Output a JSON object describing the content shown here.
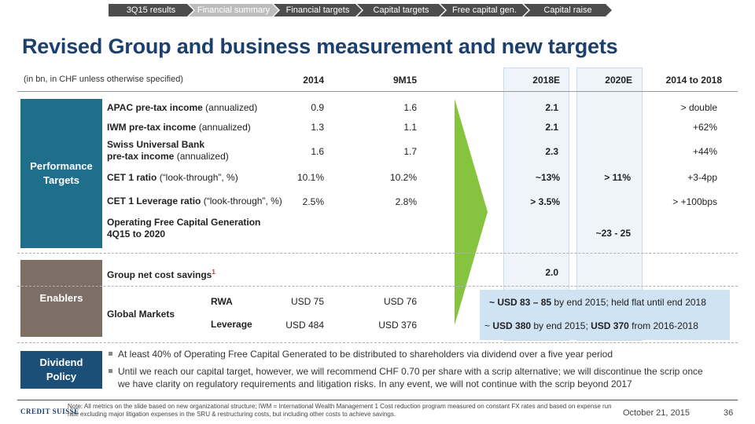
{
  "breadcrumb": {
    "items": [
      "3Q15 results",
      "Financial summary",
      "Financial targets",
      "Capital targets",
      "Free capital gen.",
      "Capital raise"
    ]
  },
  "title": "Revised Group and business measurement and new targets",
  "header": {
    "unit_note": "(in bn, in CHF unless otherwise specified)",
    "cols": [
      "2014",
      "9M15",
      "2018E",
      "2020E",
      "2014 to 2018"
    ]
  },
  "sections": {
    "performance": "Performance Targets",
    "enablers": "Enablers",
    "dividend": "Dividend Policy"
  },
  "rows": {
    "apac": {
      "label_bold": "APAC pre-tax income",
      "label_rest": " (annualized)",
      "v2014": "0.9",
      "v9m15": "1.6",
      "v2018": "2.1",
      "v2020": "",
      "chg": "> double"
    },
    "iwm": {
      "label_bold": "IWM pre-tax income",
      "label_rest": " (annualized)",
      "v2014": "1.3",
      "v9m15": "1.1",
      "v2018": "2.1",
      "v2020": "",
      "chg": "+62%"
    },
    "sub": {
      "label_bold1": "Swiss Universal Bank",
      "label_bold2": "pre-tax income",
      "label_rest": " (annualized)",
      "v2014": "1.6",
      "v9m15": "1.7",
      "v2018": "2.3",
      "v2020": "",
      "chg": "+44%"
    },
    "cet1": {
      "label_bold": "CET 1 ratio",
      "label_rest": " (“look-through”, %)",
      "v2014": "10.1%",
      "v9m15": "10.2%",
      "v2018": "~13%",
      "v2020": "> 11%",
      "chg": "+3-4pp"
    },
    "lev": {
      "label_bold": "CET 1 Leverage ratio",
      "label_rest": " (“look-through”, %)",
      "v2014": "2.5%",
      "v9m15": "2.8%",
      "v2018": "> 3.5%",
      "v2020": "",
      "chg": "> +100bps"
    },
    "ofcg": {
      "label1": "Operating Free Capital Generation",
      "label2": "4Q15 to 2020",
      "v2020": "~23 - 25"
    },
    "savings": {
      "label": "Group net cost savings",
      "sup": "1",
      "v2018": "2.0"
    }
  },
  "global_markets": {
    "label": "Global Markets",
    "rwa": {
      "label": "RWA",
      "v2014": "USD 75",
      "v9m15": "USD 76",
      "target_bold": "~ USD 83 – 85",
      "target_rest": " by end 2015; held flat until end 2018"
    },
    "leverage": {
      "label": "Leverage",
      "v2014": "USD 484",
      "v9m15": "USD 376",
      "target_pre": "~ ",
      "target_bold1": "USD 380",
      "target_mid": " by end 2015; ",
      "target_bold2": "USD 370",
      "target_rest": " from 2016-2018"
    }
  },
  "dividend": {
    "bullets": [
      "At least 40% of Operating Free Capital Generated to be distributed to shareholders via dividend over a five year period",
      "Until we reach our capital target, however, we will recommend CHF 0.70 per share with a scrip alternative; we will discontinue the scrip once",
      "we have clarity on regulatory requirements and litigation risks. In any event, we will not continue with the scrip beyond 2017"
    ]
  },
  "footer": {
    "logo": "CREDIT SUISSE",
    "note": "Note: All metrics on the slide based on new organizational structure; IWM = International Wealth Management    1 Cost reduction program measured on constant FX rates and based on expense run rate excluding major litigation expenses in the SRU & restructuring costs, but including other costs to achieve savings.",
    "date": "October 21, 2015",
    "page": "36"
  },
  "colors": {
    "title": "#1c3f6e",
    "performance": "#1f6e8c",
    "enablers": "#7d6f66",
    "dividend": "#1c4f78",
    "arrow": "#86c440"
  }
}
